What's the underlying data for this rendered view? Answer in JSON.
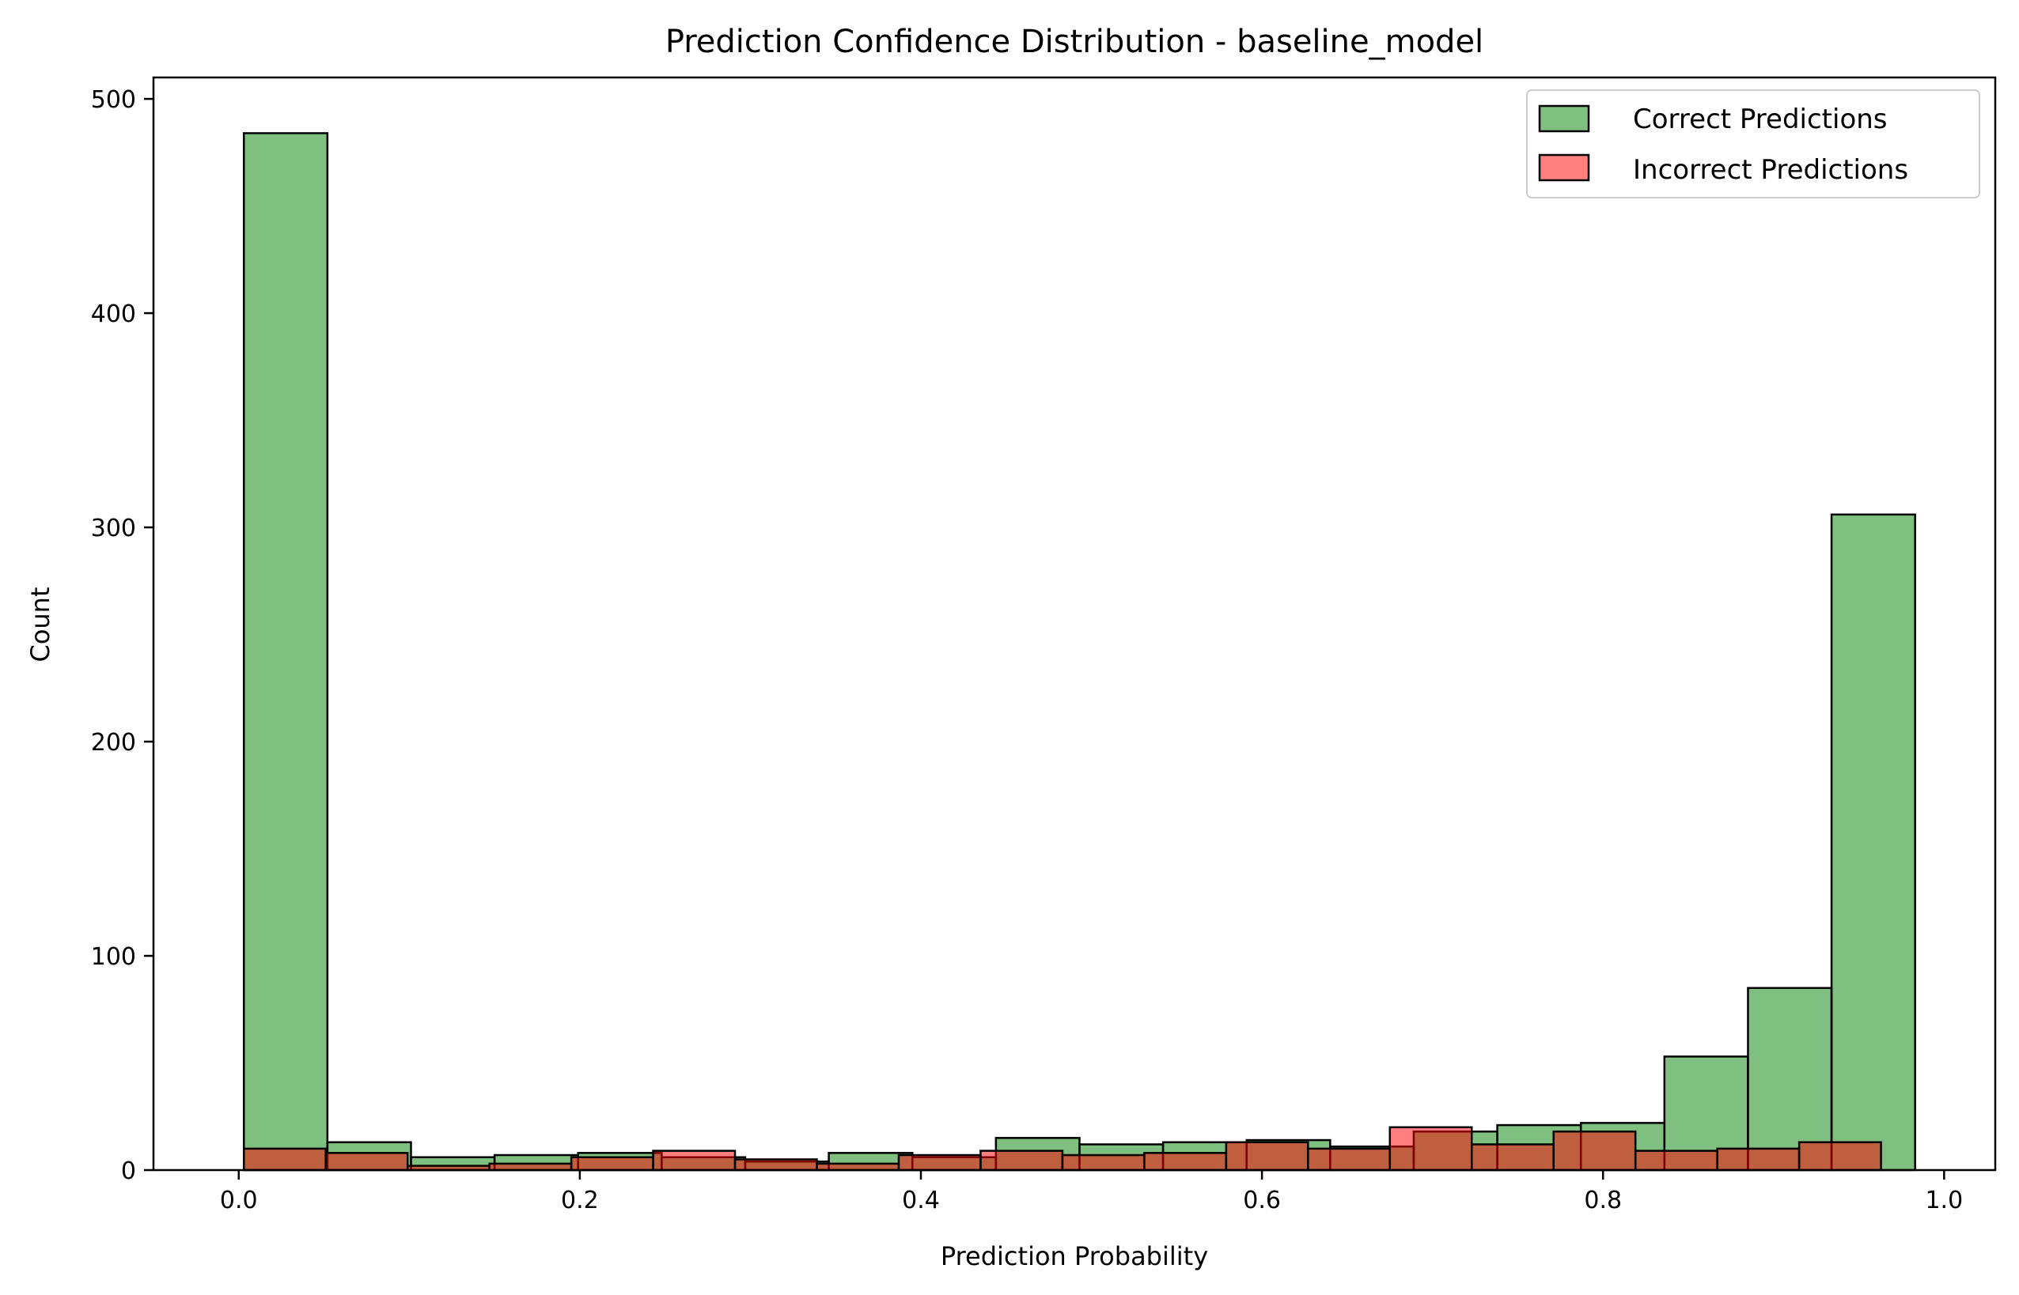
{
  "chart_data": {
    "type": "bar",
    "title": "Prediction Confidence Distribution - baseline_model",
    "xlabel": "Prediction Probability",
    "ylabel": "Count",
    "xlim": [
      -0.05,
      1.03
    ],
    "ylim": [
      0,
      510
    ],
    "xticks": [
      0.0,
      0.2,
      0.4,
      0.6,
      0.8,
      1.0
    ],
    "xtick_labels": [
      "0.0",
      "0.2",
      "0.4",
      "0.6",
      "0.8",
      "1.0"
    ],
    "yticks": [
      0,
      100,
      200,
      300,
      400,
      500
    ],
    "ytick_labels": [
      "0",
      "100",
      "200",
      "300",
      "400",
      "500"
    ],
    "grid": false,
    "legend_position": "top-right",
    "series": [
      {
        "name": "Correct Predictions",
        "color": "#008000",
        "alpha": 0.5,
        "bin_edges": [
          0.003,
          0.052,
          0.101,
          0.15,
          0.199,
          0.248,
          0.297,
          0.346,
          0.395,
          0.444,
          0.493,
          0.542,
          0.591,
          0.64,
          0.689,
          0.738,
          0.787,
          0.836,
          0.885,
          0.934,
          0.983
        ],
        "counts": [
          484,
          13,
          6,
          7,
          8,
          6,
          4,
          8,
          6,
          15,
          12,
          13,
          14,
          11,
          18,
          21,
          22,
          53,
          85,
          306
        ]
      },
      {
        "name": "Incorrect Predictions",
        "color": "#ff0000",
        "alpha": 0.5,
        "bin_edges": [
          0.003,
          0.051,
          0.099,
          0.147,
          0.195,
          0.243,
          0.291,
          0.339,
          0.387,
          0.435,
          0.483,
          0.531,
          0.579,
          0.627,
          0.675,
          0.723,
          0.771,
          0.819,
          0.867,
          0.915,
          0.963
        ],
        "counts": [
          10,
          8,
          2,
          3,
          6,
          9,
          5,
          3,
          7,
          9,
          7,
          8,
          13,
          10,
          20,
          12,
          18,
          9,
          10,
          13
        ]
      }
    ]
  }
}
